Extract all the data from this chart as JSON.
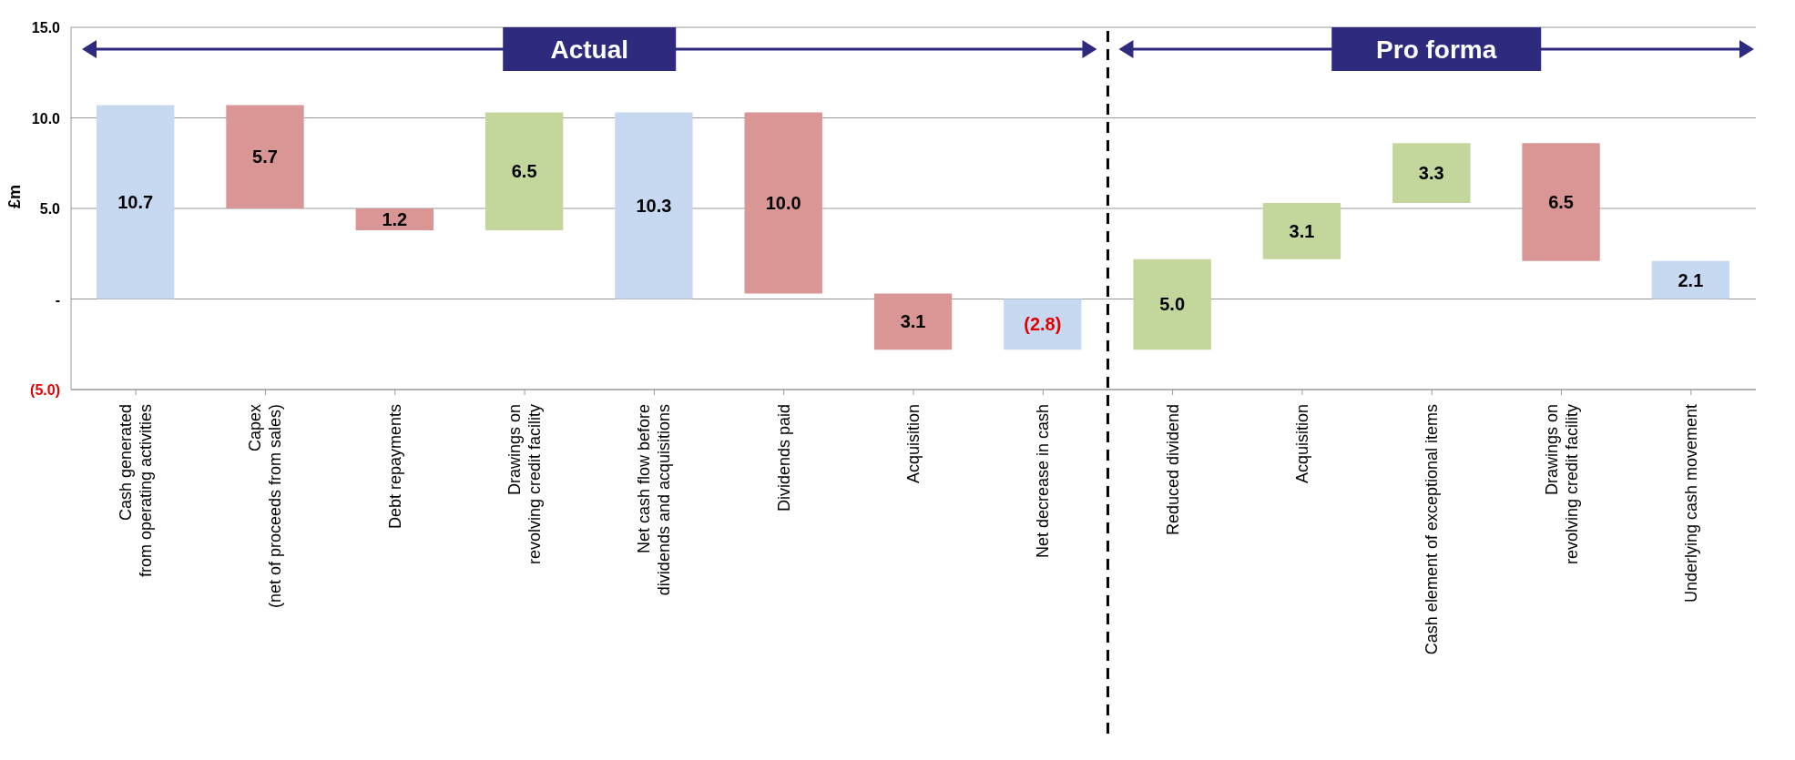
{
  "chart_data": {
    "type": "bar",
    "ylabel": "£m",
    "categories": [
      "Cash generated\nfrom operating activities",
      "Capex\n(net of proceeds from sales)",
      "Debt repayments",
      "Drawings on\nrevolving credit facility",
      "Net cash flow before\ndividends and acquisitions",
      "Dividends paid",
      "Acquisition",
      "Net decrease in cash",
      "Reduced dividend",
      "Acquisition",
      "Cash element of exceptional items",
      "Drawings on\nrevolving credit facility",
      "Underlying cash movement"
    ],
    "values": [
      10.7,
      5.7,
      1.2,
      6.5,
      10.3,
      10.0,
      3.1,
      -2.8,
      5.0,
      3.1,
      3.3,
      6.5,
      2.1
    ],
    "base": [
      0,
      5.0,
      3.8,
      3.8,
      0,
      0.3,
      -2.8,
      0,
      -2.8,
      2.2,
      5.3,
      2.1,
      0
    ],
    "colors": [
      "#c6d9f1",
      "#d99694",
      "#d99694",
      "#c3d69b",
      "#c6d9f1",
      "#d99694",
      "#d99694",
      "#c6d9f1",
      "#c3d69b",
      "#c3d69b",
      "#c3d69b",
      "#d99694",
      "#c6d9f1"
    ],
    "value_labels": [
      "10.7",
      "5.7",
      "1.2",
      "6.5",
      "10.3",
      "10.0",
      "3.1",
      "(2.8)",
      "5.0",
      "3.1",
      "3.3",
      "6.5",
      "2.1"
    ],
    "ylim": [
      -5,
      15
    ],
    "yticks": [
      {
        "value": -5,
        "label": "(5.0)"
      },
      {
        "value": 0,
        "label": "-"
      },
      {
        "value": 5,
        "label": "5.0"
      },
      {
        "value": 10,
        "label": "10.0"
      },
      {
        "value": 15,
        "label": "15.0"
      }
    ],
    "grid": "y",
    "annotations": [
      "Actual",
      "Pro forma"
    ]
  }
}
